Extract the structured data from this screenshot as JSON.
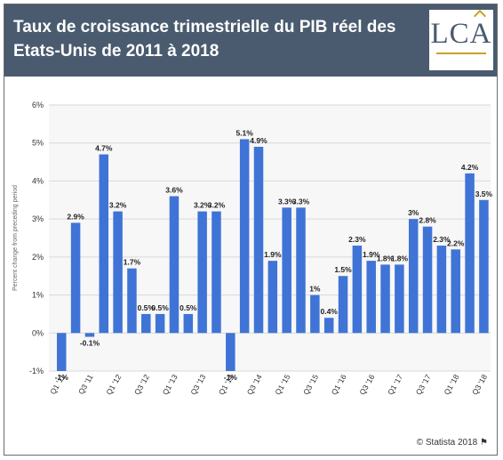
{
  "header": {
    "title_line1": "Taux de croissance trimestrielle du PIB réel des",
    "title_line2": "Etats-Unis de 2011 à 2018",
    "logo": "LCA"
  },
  "footer": {
    "credit": "© Statista 2018",
    "flag_icon": "flag-icon"
  },
  "colors": {
    "bar": "#3f74d6",
    "header_bg": "#4a5b70",
    "plot_bg": "#f7f7f7",
    "grid": "#d9d9d9"
  },
  "chart_data": {
    "type": "bar",
    "ylabel": "Percent change from preceding period",
    "ylim": [
      -1,
      6
    ],
    "yticks": [
      "-1%",
      "0%",
      "1%",
      "2%",
      "3%",
      "4%",
      "5%",
      "6%"
    ],
    "grid": "horizontal",
    "x_tick_labels": [
      "Q1 '11",
      "Q3 '11",
      "Q1 '12",
      "Q3 '12",
      "Q1 '13",
      "Q3 '13",
      "Q1 '14",
      "Q3 '14",
      "Q1 '15",
      "Q3 '15",
      "Q1 '16",
      "Q3 '16",
      "Q1 '17",
      "Q3 '17",
      "Q1 '18",
      "Q3 '18"
    ],
    "values": [
      -1,
      2.9,
      -0.1,
      4.7,
      3.2,
      1.7,
      0.5,
      0.5,
      3.6,
      0.5,
      3.2,
      3.2,
      -1,
      5.1,
      4.9,
      1.9,
      3.3,
      3.3,
      1,
      0.4,
      1.5,
      2.3,
      1.9,
      1.8,
      1.8,
      3,
      2.8,
      2.3,
      2.2,
      4.2,
      3.5
    ],
    "data_labels": [
      "-1%",
      "2.9%",
      "-0.1%",
      "4.7%",
      "3.2%",
      "1.7%",
      "0.5%",
      "0.5%",
      "3.6%",
      "0.5%",
      "3.2%",
      "3.2%",
      "-1%",
      "5.1%",
      "4.9%",
      "1.9%",
      "3.3%",
      "3.3%",
      "1%",
      "0.4%",
      "1.5%",
      "2.3%",
      "1.9%",
      "1.8%",
      "1.8%",
      "3%",
      "2.8%",
      "2.3%",
      "2.2%",
      "4.2%",
      "3.5%"
    ]
  }
}
